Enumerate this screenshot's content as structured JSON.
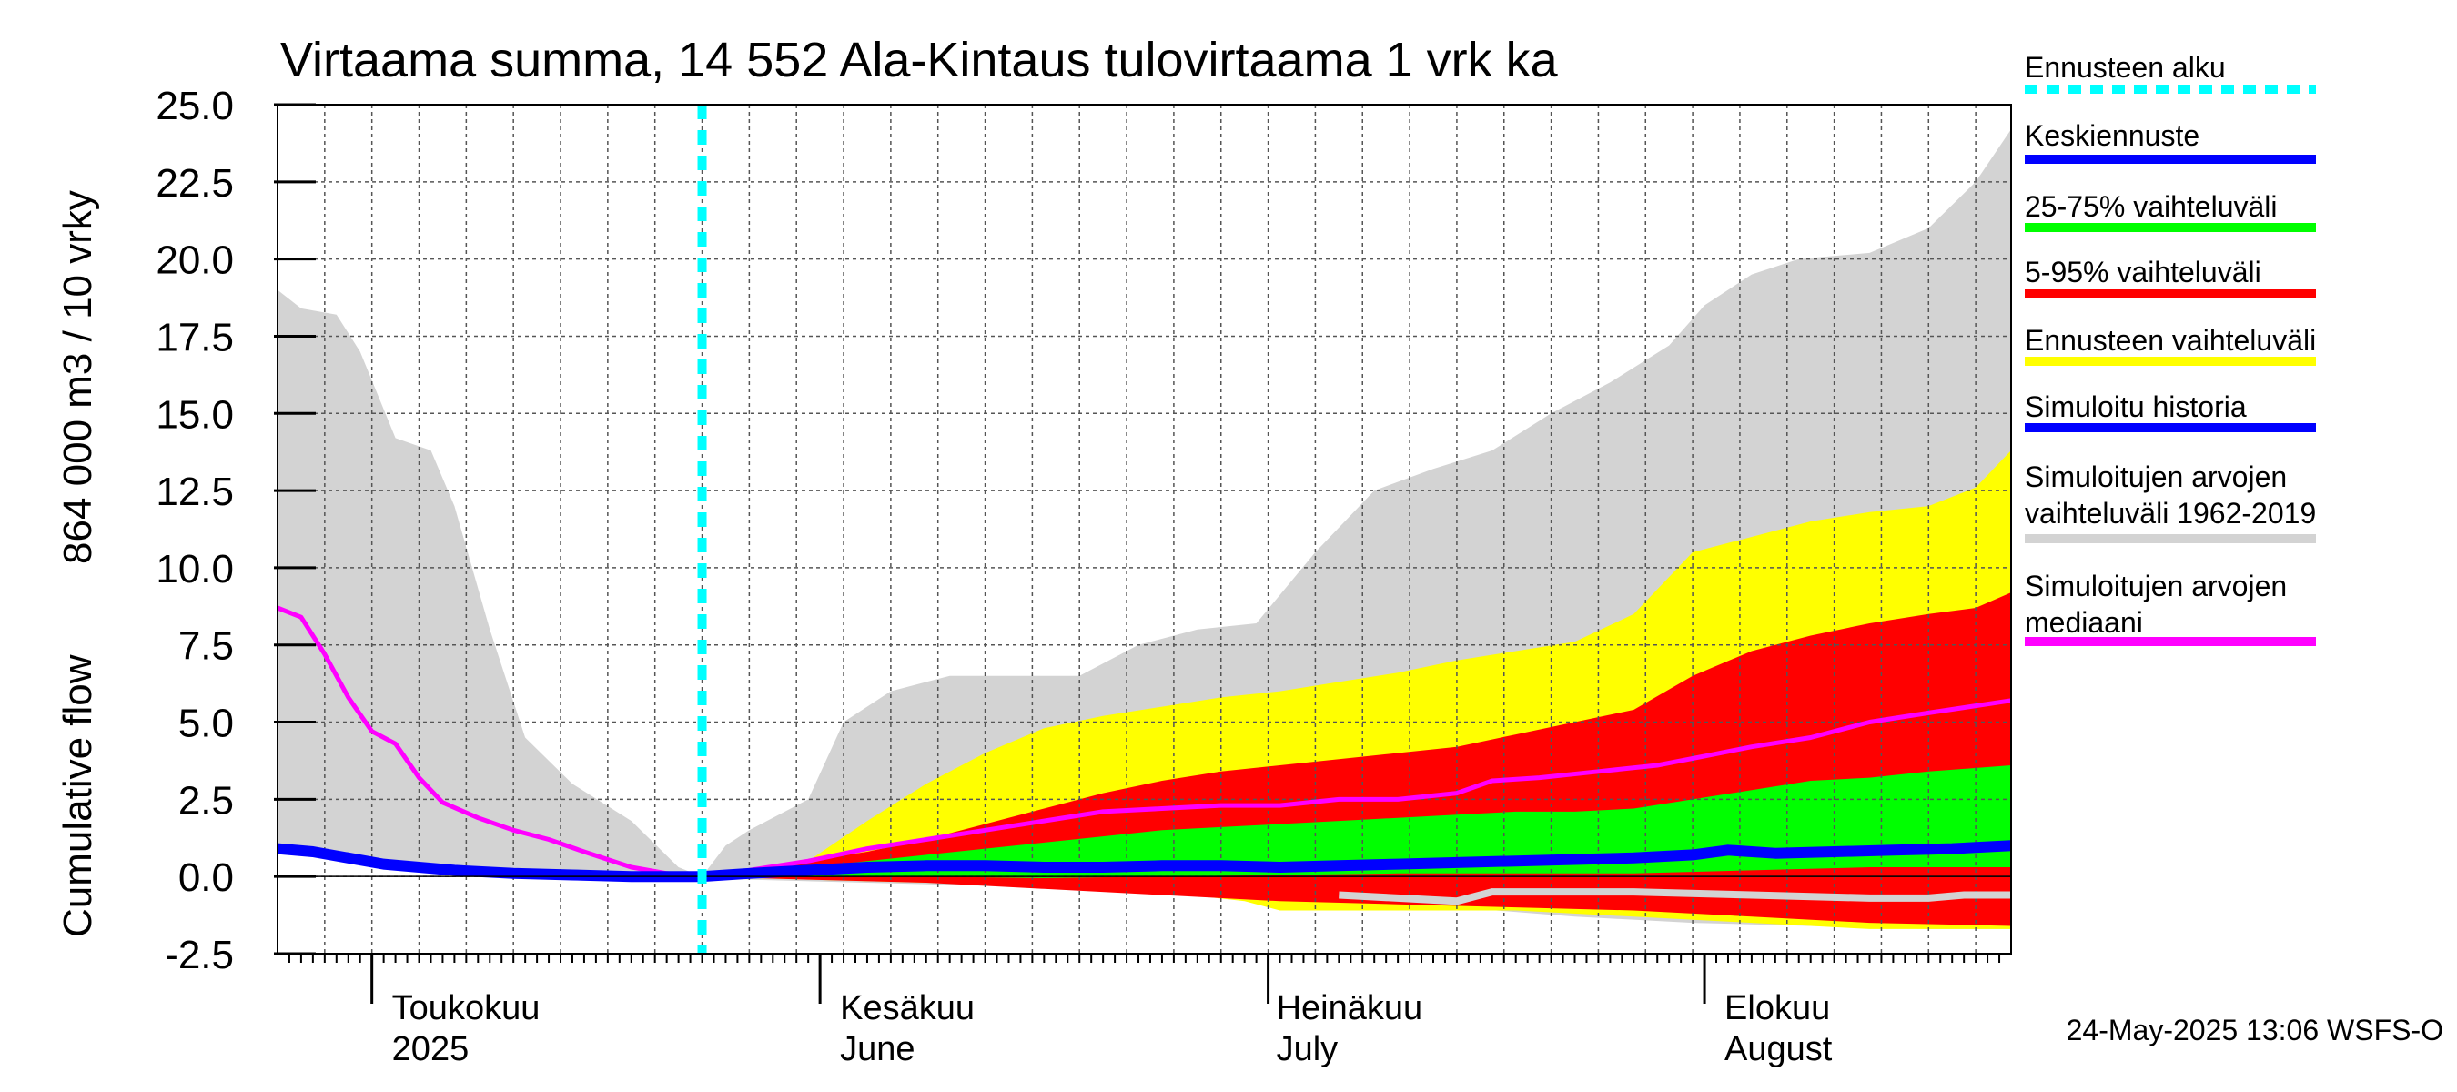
{
  "chart_data": {
    "type": "area",
    "title": "Virtaama summa, 14 552 Ala-Kintaus tulovirtaama 1 vrk ka",
    "ylabel_top": "864 000 m3 / 10 vrky",
    "ylabel_bottom": "Cumulative flow",
    "ylim": [
      -2.5,
      25.0
    ],
    "y_ticks": [
      "25.0",
      "22.5",
      "20.0",
      "17.5",
      "15.0",
      "12.5",
      "10.0",
      "7.5",
      "5.0",
      "2.5",
      "0.0",
      "-2.5"
    ],
    "grid": true,
    "legend_position": "right",
    "x_range_days": [
      0,
      147
    ],
    "forecast_start_day": 36,
    "month_labels": [
      {
        "day": 8,
        "line1": "Toukokuu",
        "line2": "2025"
      },
      {
        "day": 46,
        "line1": "Kesäkuu",
        "line2": "June"
      },
      {
        "day": 83,
        "line1": "Heinäkuu",
        "line2": "July"
      },
      {
        "day": 121,
        "line1": "Elokuu",
        "line2": "August"
      }
    ],
    "month_boundaries": [
      8,
      46,
      84,
      121
    ],
    "series": [
      {
        "name": "Simuloitujen arvojen vaihteluväli 1962-2019",
        "color": "#d3d3d3",
        "lower": [
          [
            0,
            1.0
          ],
          [
            5,
            0.6
          ],
          [
            10,
            0.3
          ],
          [
            15,
            0.1
          ],
          [
            20,
            0.0
          ],
          [
            25,
            -0.1
          ],
          [
            30,
            -0.1
          ],
          [
            36,
            0.0
          ],
          [
            40,
            -0.1
          ],
          [
            50,
            -0.2
          ],
          [
            60,
            -0.3
          ],
          [
            70,
            -0.4
          ],
          [
            80,
            -0.6
          ],
          [
            90,
            -0.9
          ],
          [
            100,
            -1.0
          ],
          [
            110,
            -1.3
          ],
          [
            120,
            -1.5
          ],
          [
            130,
            -1.6
          ],
          [
            140,
            -1.7
          ],
          [
            147,
            -1.7
          ]
        ],
        "upper": [
          [
            0,
            19.0
          ],
          [
            2,
            18.4
          ],
          [
            5,
            18.2
          ],
          [
            7,
            17.0
          ],
          [
            10,
            14.2
          ],
          [
            13,
            13.8
          ],
          [
            15,
            12.0
          ],
          [
            18,
            8.0
          ],
          [
            21,
            4.5
          ],
          [
            25,
            3.0
          ],
          [
            30,
            1.8
          ],
          [
            34,
            0.3
          ],
          [
            36,
            0.0
          ],
          [
            38,
            1.0
          ],
          [
            40,
            1.5
          ],
          [
            45,
            2.5
          ],
          [
            48,
            5.0
          ],
          [
            52,
            6.0
          ],
          [
            57,
            6.5
          ],
          [
            62,
            6.5
          ],
          [
            68,
            6.5
          ],
          [
            73,
            7.5
          ],
          [
            78,
            8.0
          ],
          [
            83,
            8.2
          ],
          [
            88,
            10.5
          ],
          [
            93,
            12.5
          ],
          [
            98,
            13.2
          ],
          [
            103,
            13.8
          ],
          [
            108,
            15.0
          ],
          [
            113,
            16.0
          ],
          [
            118,
            17.2
          ],
          [
            121,
            18.5
          ],
          [
            125,
            19.5
          ],
          [
            129,
            20.0
          ],
          [
            135,
            20.2
          ],
          [
            140,
            21.0
          ],
          [
            144,
            22.5
          ],
          [
            147,
            24.2
          ]
        ]
      },
      {
        "name": "Ennusteen vaihteluväli",
        "color": "#ffff00",
        "lower": [
          [
            36,
            0.0
          ],
          [
            45,
            -0.1
          ],
          [
            55,
            -0.2
          ],
          [
            65,
            -0.3
          ],
          [
            75,
            -0.5
          ],
          [
            82,
            -0.8
          ],
          [
            85,
            -1.1
          ],
          [
            95,
            -1.1
          ],
          [
            105,
            -1.1
          ],
          [
            115,
            -1.3
          ],
          [
            125,
            -1.5
          ],
          [
            135,
            -1.7
          ],
          [
            147,
            -1.7
          ]
        ],
        "upper": [
          [
            36,
            0.0
          ],
          [
            40,
            0.1
          ],
          [
            45,
            0.5
          ],
          [
            50,
            1.8
          ],
          [
            55,
            3.0
          ],
          [
            60,
            4.0
          ],
          [
            65,
            4.8
          ],
          [
            70,
            5.2
          ],
          [
            75,
            5.5
          ],
          [
            80,
            5.8
          ],
          [
            85,
            6.0
          ],
          [
            90,
            6.3
          ],
          [
            95,
            6.6
          ],
          [
            100,
            7.0
          ],
          [
            105,
            7.3
          ],
          [
            110,
            7.6
          ],
          [
            115,
            8.5
          ],
          [
            120,
            10.5
          ],
          [
            125,
            11.0
          ],
          [
            130,
            11.5
          ],
          [
            135,
            11.8
          ],
          [
            140,
            12.0
          ],
          [
            144,
            12.6
          ],
          [
            147,
            13.8
          ]
        ]
      },
      {
        "name": "5-95% vaihteluväli",
        "color": "#ff0000",
        "lower": [
          [
            36,
            0.0
          ],
          [
            45,
            -0.1
          ],
          [
            55,
            -0.2
          ],
          [
            65,
            -0.4
          ],
          [
            75,
            -0.6
          ],
          [
            85,
            -0.8
          ],
          [
            95,
            -0.9
          ],
          [
            105,
            -1.0
          ],
          [
            115,
            -1.1
          ],
          [
            125,
            -1.3
          ],
          [
            135,
            -1.5
          ],
          [
            147,
            -1.6
          ]
        ],
        "upper": [
          [
            36,
            0.0
          ],
          [
            40,
            0.1
          ],
          [
            45,
            0.5
          ],
          [
            50,
            0.8
          ],
          [
            55,
            1.2
          ],
          [
            60,
            1.7
          ],
          [
            65,
            2.2
          ],
          [
            70,
            2.7
          ],
          [
            75,
            3.1
          ],
          [
            80,
            3.4
          ],
          [
            85,
            3.6
          ],
          [
            90,
            3.8
          ],
          [
            95,
            4.0
          ],
          [
            100,
            4.2
          ],
          [
            105,
            4.6
          ],
          [
            110,
            5.0
          ],
          [
            115,
            5.4
          ],
          [
            120,
            6.5
          ],
          [
            125,
            7.3
          ],
          [
            130,
            7.8
          ],
          [
            135,
            8.2
          ],
          [
            140,
            8.5
          ],
          [
            144,
            8.7
          ],
          [
            147,
            9.2
          ]
        ]
      },
      {
        "name": "25-75% vaihteluväli",
        "color": "#00ff00",
        "lower": [
          [
            36,
            0.0
          ],
          [
            45,
            0.0
          ],
          [
            55,
            0.0
          ],
          [
            65,
            -0.05
          ],
          [
            75,
            0.0
          ],
          [
            85,
            0.05
          ],
          [
            95,
            0.1
          ],
          [
            105,
            0.1
          ],
          [
            115,
            0.1
          ],
          [
            125,
            0.2
          ],
          [
            135,
            0.3
          ],
          [
            147,
            0.3
          ]
        ],
        "upper": [
          [
            36,
            0.0
          ],
          [
            40,
            0.1
          ],
          [
            45,
            0.3
          ],
          [
            50,
            0.5
          ],
          [
            55,
            0.7
          ],
          [
            60,
            0.9
          ],
          [
            65,
            1.1
          ],
          [
            70,
            1.3
          ],
          [
            75,
            1.5
          ],
          [
            80,
            1.6
          ],
          [
            85,
            1.7
          ],
          [
            90,
            1.8
          ],
          [
            95,
            1.9
          ],
          [
            100,
            2.0
          ],
          [
            105,
            2.1
          ],
          [
            110,
            2.1
          ],
          [
            115,
            2.2
          ],
          [
            120,
            2.5
          ],
          [
            125,
            2.8
          ],
          [
            130,
            3.1
          ],
          [
            135,
            3.2
          ],
          [
            140,
            3.4
          ],
          [
            147,
            3.6
          ]
        ]
      },
      {
        "name": "Simuloitu historia",
        "color": "#0000ff",
        "points": [
          [
            0,
            0.9
          ],
          [
            3,
            0.8
          ],
          [
            6,
            0.6
          ],
          [
            9,
            0.4
          ],
          [
            12,
            0.3
          ],
          [
            15,
            0.2
          ],
          [
            20,
            0.1
          ],
          [
            25,
            0.05
          ],
          [
            30,
            0.0
          ],
          [
            36,
            0.0
          ]
        ]
      },
      {
        "name": "Keskiennuste",
        "color": "#0000ff",
        "points": [
          [
            36,
            0.0
          ],
          [
            40,
            0.1
          ],
          [
            45,
            0.2
          ],
          [
            50,
            0.3
          ],
          [
            55,
            0.35
          ],
          [
            60,
            0.35
          ],
          [
            65,
            0.3
          ],
          [
            70,
            0.3
          ],
          [
            75,
            0.35
          ],
          [
            80,
            0.35
          ],
          [
            85,
            0.3
          ],
          [
            90,
            0.35
          ],
          [
            95,
            0.4
          ],
          [
            100,
            0.45
          ],
          [
            105,
            0.5
          ],
          [
            110,
            0.55
          ],
          [
            115,
            0.6
          ],
          [
            120,
            0.7
          ],
          [
            123,
            0.85
          ],
          [
            127,
            0.75
          ],
          [
            132,
            0.8
          ],
          [
            137,
            0.85
          ],
          [
            142,
            0.9
          ],
          [
            147,
            1.0
          ]
        ]
      },
      {
        "name": "Simuloitujen arvojen mediaani",
        "color": "#ff00ff",
        "points": [
          [
            0,
            8.7
          ],
          [
            2,
            8.4
          ],
          [
            4,
            7.2
          ],
          [
            6,
            5.8
          ],
          [
            8,
            4.7
          ],
          [
            10,
            4.3
          ],
          [
            12,
            3.2
          ],
          [
            14,
            2.4
          ],
          [
            17,
            1.9
          ],
          [
            20,
            1.5
          ],
          [
            23,
            1.2
          ],
          [
            26,
            0.8
          ],
          [
            30,
            0.3
          ],
          [
            33,
            0.1
          ],
          [
            36,
            0.0
          ],
          [
            40,
            0.2
          ],
          [
            45,
            0.5
          ],
          [
            50,
            0.9
          ],
          [
            55,
            1.2
          ],
          [
            60,
            1.5
          ],
          [
            65,
            1.8
          ],
          [
            70,
            2.1
          ],
          [
            75,
            2.2
          ],
          [
            80,
            2.3
          ],
          [
            85,
            2.3
          ],
          [
            90,
            2.5
          ],
          [
            95,
            2.5
          ],
          [
            100,
            2.7
          ],
          [
            103,
            3.1
          ],
          [
            107,
            3.2
          ],
          [
            112,
            3.4
          ],
          [
            117,
            3.6
          ],
          [
            121,
            3.9
          ],
          [
            125,
            4.2
          ],
          [
            130,
            4.5
          ],
          [
            135,
            5.0
          ],
          [
            140,
            5.3
          ],
          [
            147,
            5.7
          ]
        ]
      },
      {
        "name": "Ennusteen alku",
        "color": "#00ffff"
      }
    ],
    "light_line": {
      "color": "#d3d3d3",
      "points": [
        [
          90,
          -0.6
        ],
        [
          95,
          -0.7
        ],
        [
          100,
          -0.8
        ],
        [
          103,
          -0.5
        ],
        [
          107,
          -0.5
        ],
        [
          115,
          -0.5
        ],
        [
          125,
          -0.6
        ],
        [
          135,
          -0.7
        ],
        [
          140,
          -0.7
        ],
        [
          143,
          -0.6
        ],
        [
          147,
          -0.6
        ]
      ]
    }
  },
  "legend": {
    "items": [
      {
        "key": "ennusteen_alku",
        "lines": [
          "Ennusteen alku"
        ],
        "color": "#00ffff",
        "dashed": true
      },
      {
        "key": "keskiennuste",
        "lines": [
          "Keskiennuste"
        ],
        "color": "#0000ff",
        "dashed": false
      },
      {
        "key": "vaihteluvali_25_75",
        "lines": [
          "25-75% vaihteluväli"
        ],
        "color": "#00ff00",
        "dashed": false
      },
      {
        "key": "vaihteluvali_5_95",
        "lines": [
          "5-95% vaihteluväli"
        ],
        "color": "#ff0000",
        "dashed": false
      },
      {
        "key": "ennusteen_vaihteluvali",
        "lines": [
          "Ennusteen vaihteluväli"
        ],
        "color": "#ffff00",
        "dashed": false
      },
      {
        "key": "simuloitu_historia",
        "lines": [
          "Simuloitu historia"
        ],
        "color": "#0000ff",
        "dashed": false
      },
      {
        "key": "simuloitujen_vaihteluvali",
        "lines": [
          "Simuloitujen arvojen",
          "vaihteluväli 1962-2019"
        ],
        "color": "#d3d3d3",
        "dashed": false
      },
      {
        "key": "simuloitujen_mediaani",
        "lines": [
          "Simuloitujen arvojen",
          "mediaani"
        ],
        "color": "#ff00ff",
        "dashed": false
      }
    ]
  },
  "footer": {
    "timestamp": "24-May-2025 13:06 WSFS-O"
  }
}
